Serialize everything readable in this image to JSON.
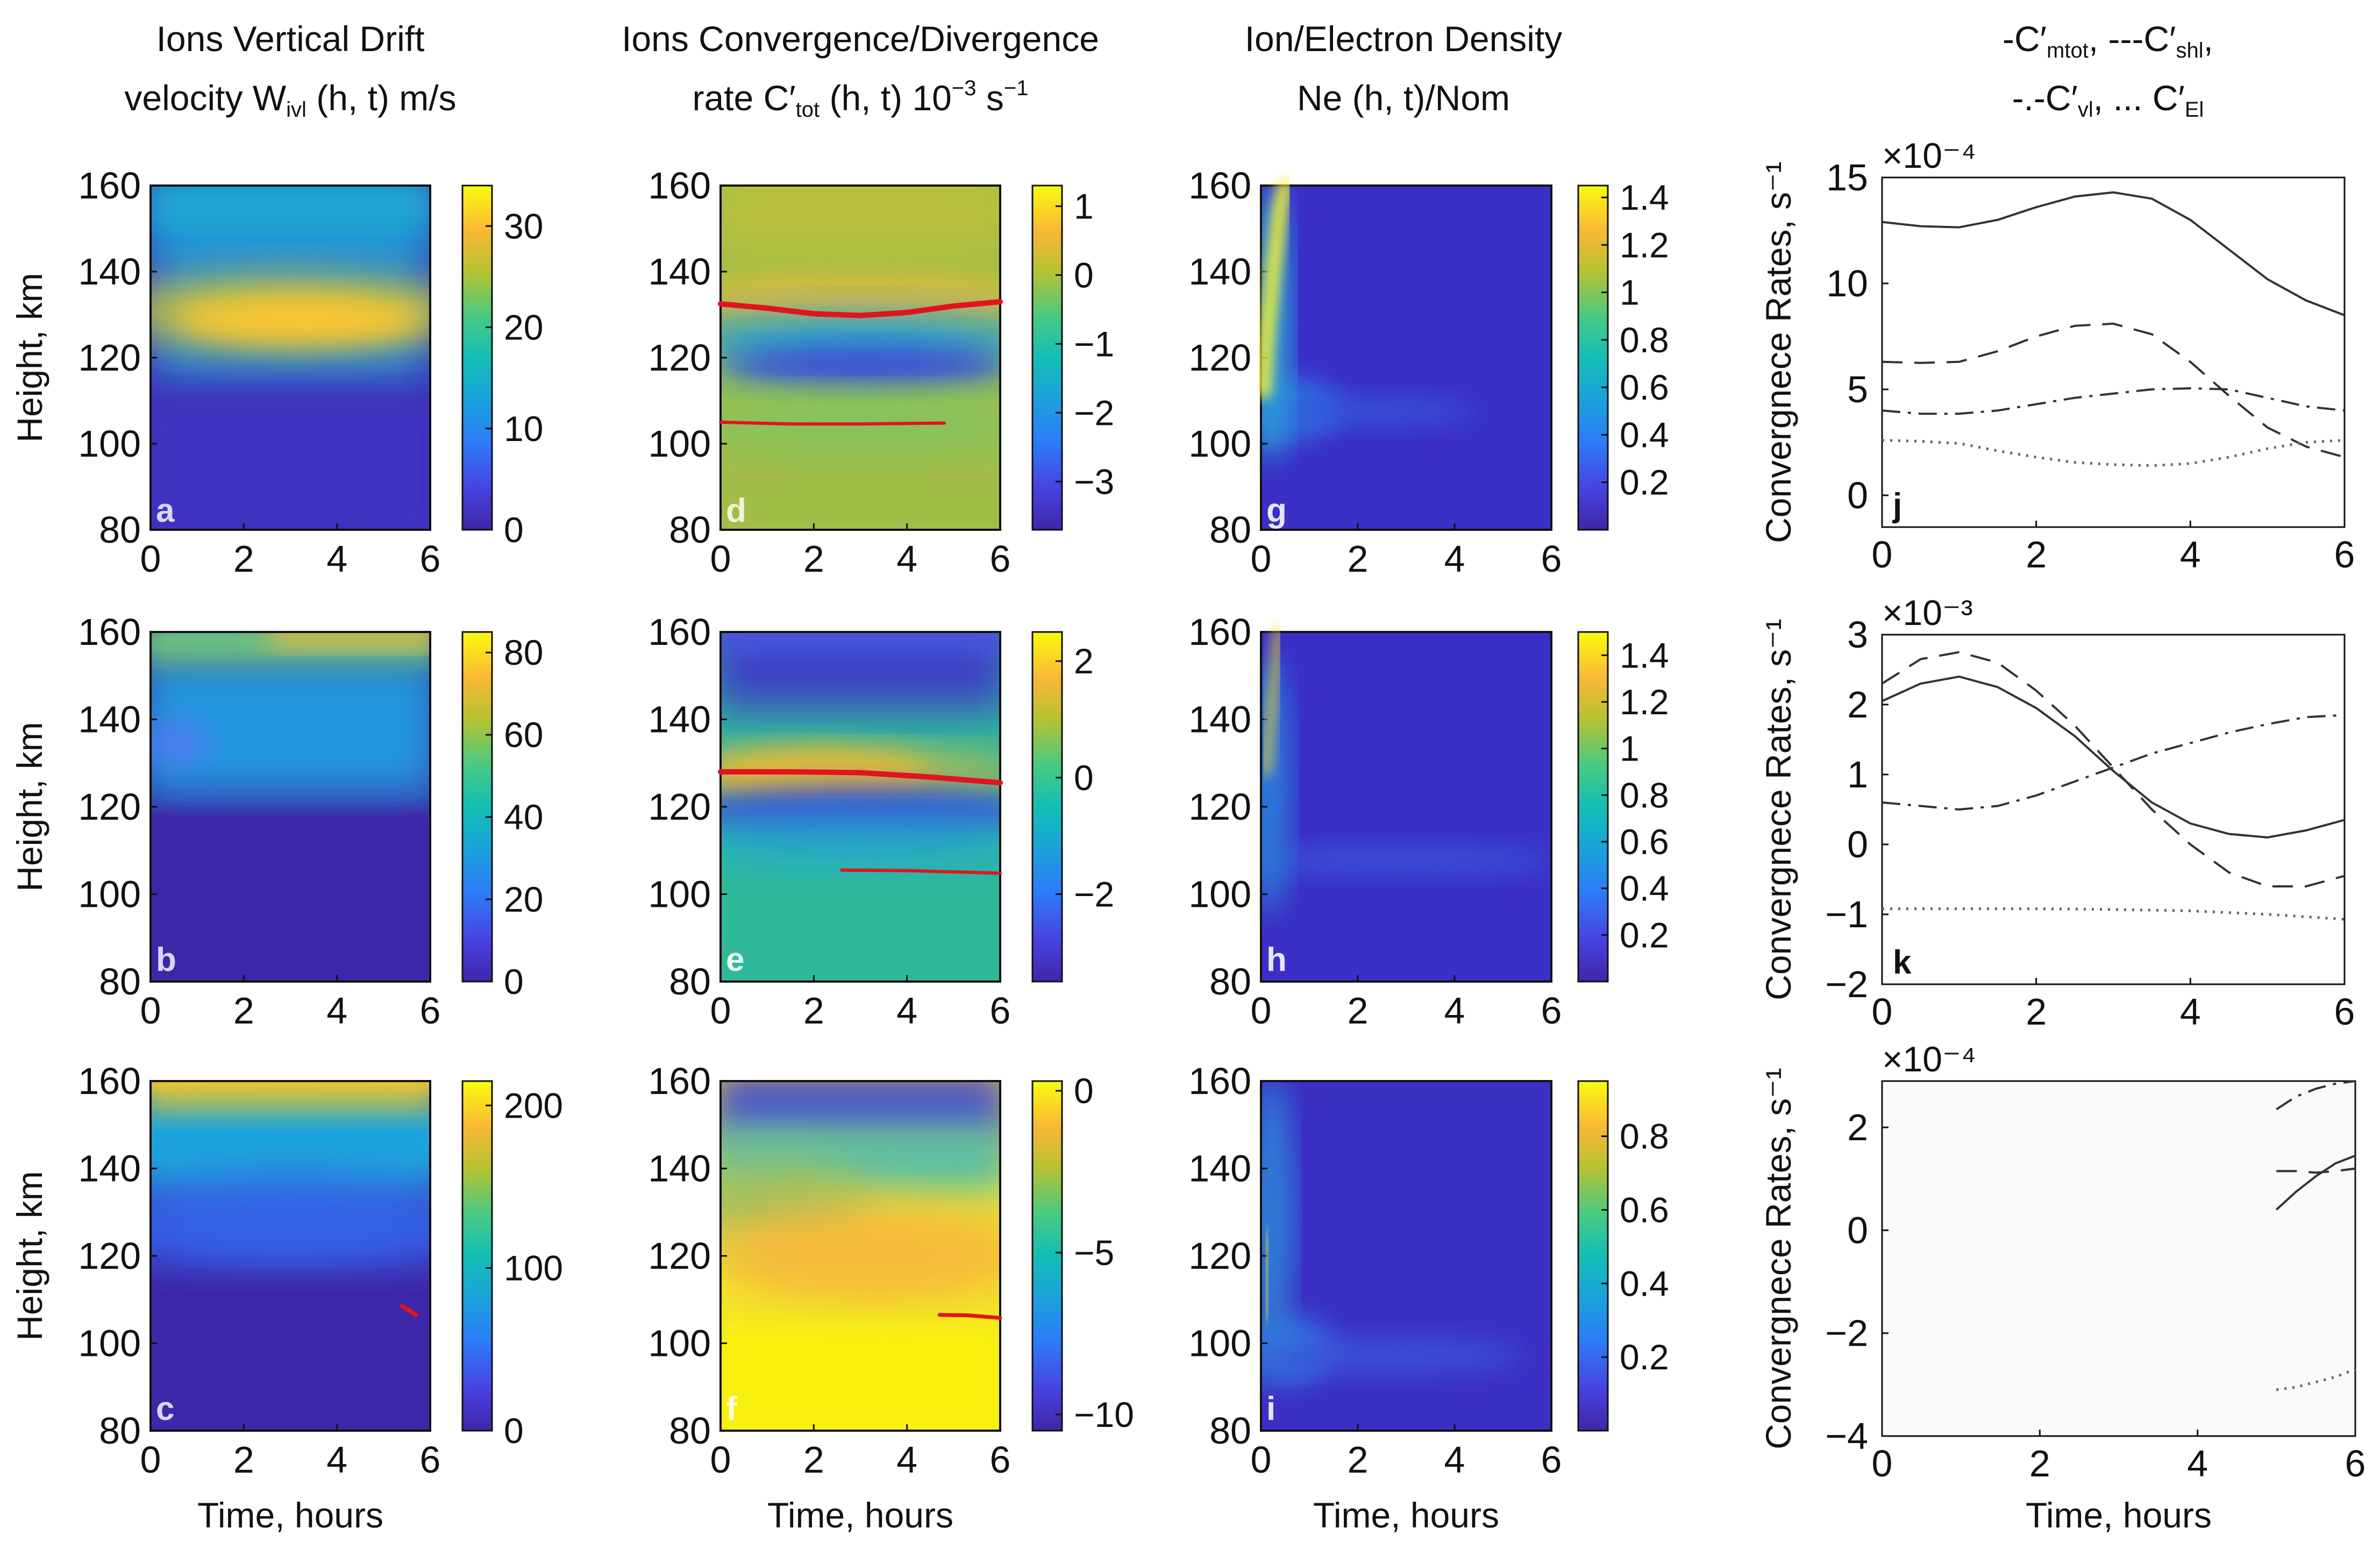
{
  "column_titles": [
    {
      "line1": "Ions Vertical Drift",
      "line2_a": "velocity W",
      "line2_sub": "ivl",
      "line2_b": " (h, t) m/s"
    },
    {
      "line1": "Ions Convergence/Divergence",
      "line2_a": "rate C′",
      "line2_sub": "tot",
      "line2_b": " (h, t) 10",
      "line2_sup": "−3",
      "line2_c": " s",
      "line2_sup2": "−1"
    },
    {
      "line1": "Ion/Electron Density",
      "line2_a": "Ne (h, t)/Nom",
      "line2_sub": "",
      "line2_b": ""
    },
    {
      "line1_a": "-C′",
      "line1_sub1": "mtot",
      "line1_b": ", ---C′",
      "line1_sub2": "shl",
      "line1_c": ",",
      "line2_a": "-.-C′",
      "line2_sub1": "vl",
      "line2_b": ", ... C′",
      "line2_sub2": "El"
    }
  ],
  "colors": {
    "accent_red": "#e0141e",
    "line": "#333333",
    "frame": "#111111"
  },
  "chart_data": [
    {
      "id": "a",
      "type": "heatmap",
      "title": "Ions Vertical Drift velocity W_ivl (h, t) m/s",
      "xlabel": "",
      "ylabel": "Height, km",
      "x_ticks": [
        "0",
        "2",
        "4",
        "6"
      ],
      "y_ticks": [
        "80",
        "100",
        "120",
        "140",
        "160"
      ],
      "xlim": [
        0,
        6
      ],
      "ylim": [
        80,
        160
      ],
      "colorbar_ticks": [
        "0",
        "10",
        "20",
        "30"
      ],
      "colorbar_range": [
        0,
        34
      ]
    },
    {
      "id": "d",
      "type": "heatmap",
      "title": "Ions Convergence/Divergence rate C'_tot (h, t) 10^-3 s^-1",
      "xlabel": "",
      "ylabel": "",
      "x_ticks": [
        "0",
        "2",
        "4",
        "6"
      ],
      "y_ticks": [
        "80",
        "100",
        "120",
        "140",
        "160"
      ],
      "xlim": [
        0,
        6
      ],
      "ylim": [
        80,
        160
      ],
      "colorbar_ticks": [
        "−3",
        "−2",
        "−1",
        "0",
        "1"
      ],
      "colorbar_range": [
        -3.7,
        1.3
      ]
    },
    {
      "id": "g",
      "type": "heatmap",
      "title": "Ion/Electron Density Ne (h, t)/Nom",
      "xlabel": "",
      "ylabel": "",
      "x_ticks": [
        "0",
        "2",
        "4",
        "6"
      ],
      "y_ticks": [
        "80",
        "100",
        "120",
        "140",
        "160"
      ],
      "xlim": [
        0,
        6
      ],
      "ylim": [
        80,
        160
      ],
      "colorbar_ticks": [
        "0.2",
        "0.4",
        "0.6",
        "0.8",
        "1",
        "1.2",
        "1.4"
      ],
      "colorbar_range": [
        0,
        1.45
      ]
    },
    {
      "id": "j",
      "type": "line",
      "title": "",
      "xlabel": "",
      "ylabel": "Convergnece Rates, s⁻¹",
      "scale_label": "×10⁻⁴",
      "x_ticks": [
        "0",
        "2",
        "4",
        "6"
      ],
      "y_ticks": [
        "0",
        "5",
        "10",
        "15"
      ],
      "xlim": [
        0,
        6
      ],
      "ylim": [
        -1.5,
        15
      ],
      "series": [
        {
          "name": "C'_mtot",
          "style": "solid",
          "x": [
            0,
            0.5,
            1,
            1.5,
            2,
            2.5,
            3,
            3.5,
            4,
            4.5,
            5,
            5.5,
            6
          ],
          "y": [
            12.9,
            12.7,
            12.65,
            13.0,
            13.6,
            14.1,
            14.3,
            14.0,
            13.0,
            11.6,
            10.2,
            9.2,
            8.5
          ]
        },
        {
          "name": "C'_shl",
          "style": "dashed",
          "x": [
            0,
            0.5,
            1,
            1.5,
            2,
            2.5,
            3,
            3.5,
            4,
            4.5,
            5,
            5.5,
            6
          ],
          "y": [
            6.3,
            6.25,
            6.3,
            6.8,
            7.5,
            8.0,
            8.1,
            7.6,
            6.3,
            4.7,
            3.2,
            2.3,
            1.8
          ]
        },
        {
          "name": "C'_vl",
          "style": "dashdot",
          "x": [
            0,
            0.5,
            1,
            1.5,
            2,
            2.5,
            3,
            3.5,
            4,
            4.5,
            5,
            5.5,
            6
          ],
          "y": [
            4.0,
            3.85,
            3.85,
            4.0,
            4.3,
            4.6,
            4.8,
            5.0,
            5.05,
            5.0,
            4.6,
            4.2,
            4.0
          ]
        },
        {
          "name": "C'_El",
          "style": "dotted",
          "x": [
            0,
            0.5,
            1,
            1.5,
            2,
            2.5,
            3,
            3.5,
            4,
            4.5,
            5,
            5.5,
            6
          ],
          "y": [
            2.6,
            2.55,
            2.45,
            2.1,
            1.8,
            1.55,
            1.45,
            1.4,
            1.5,
            1.8,
            2.2,
            2.5,
            2.6
          ]
        }
      ]
    },
    {
      "id": "b",
      "type": "heatmap",
      "title": "",
      "xlabel": "",
      "ylabel": "Height, km",
      "x_ticks": [
        "0",
        "2",
        "4",
        "6"
      ],
      "y_ticks": [
        "80",
        "100",
        "120",
        "140",
        "160"
      ],
      "xlim": [
        0,
        6
      ],
      "ylim": [
        80,
        160
      ],
      "colorbar_ticks": [
        "0",
        "20",
        "40",
        "60",
        "80"
      ],
      "colorbar_range": [
        0,
        85
      ]
    },
    {
      "id": "e",
      "type": "heatmap",
      "title": "",
      "xlabel": "",
      "ylabel": "",
      "x_ticks": [
        "0",
        "2",
        "4",
        "6"
      ],
      "y_ticks": [
        "80",
        "100",
        "120",
        "140",
        "160"
      ],
      "xlim": [
        0,
        6
      ],
      "ylim": [
        80,
        160
      ],
      "colorbar_ticks": [
        "−2",
        "0",
        "2"
      ],
      "colorbar_range": [
        -3.5,
        2.5
      ]
    },
    {
      "id": "h",
      "type": "heatmap",
      "title": "",
      "xlabel": "",
      "ylabel": "",
      "x_ticks": [
        "0",
        "2",
        "4",
        "6"
      ],
      "y_ticks": [
        "80",
        "100",
        "120",
        "140",
        "160"
      ],
      "xlim": [
        0,
        6
      ],
      "ylim": [
        80,
        160
      ],
      "colorbar_ticks": [
        "0.2",
        "0.4",
        "0.6",
        "0.8",
        "1",
        "1.2",
        "1.4"
      ],
      "colorbar_range": [
        0,
        1.5
      ]
    },
    {
      "id": "k",
      "type": "line",
      "title": "",
      "xlabel": "",
      "ylabel": "Convergnece Rates, s⁻¹",
      "scale_label": "×10⁻³",
      "x_ticks": [
        "0",
        "2",
        "4",
        "6"
      ],
      "y_ticks": [
        "−2",
        "−1",
        "0",
        "1",
        "2",
        "3"
      ],
      "xlim": [
        0,
        6
      ],
      "ylim": [
        -2,
        3
      ],
      "series": [
        {
          "name": "C'_mtot",
          "style": "solid",
          "x": [
            0,
            0.5,
            1,
            1.5,
            2,
            2.5,
            3,
            3.5,
            4,
            4.5,
            5,
            5.5,
            6
          ],
          "y": [
            2.05,
            2.3,
            2.4,
            2.25,
            1.95,
            1.55,
            1.05,
            0.6,
            0.3,
            0.15,
            0.1,
            0.2,
            0.35
          ]
        },
        {
          "name": "C'_shl",
          "style": "dashed",
          "x": [
            0,
            0.5,
            1,
            1.5,
            2,
            2.5,
            3,
            3.5,
            4,
            4.5,
            5,
            5.5,
            6
          ],
          "y": [
            2.3,
            2.65,
            2.75,
            2.6,
            2.2,
            1.7,
            1.1,
            0.5,
            0.0,
            -0.4,
            -0.6,
            -0.6,
            -0.45
          ]
        },
        {
          "name": "C'_vl",
          "style": "dashdot",
          "x": [
            0,
            0.5,
            1,
            1.5,
            2,
            2.5,
            3,
            3.5,
            4,
            4.5,
            5,
            5.5,
            6
          ],
          "y": [
            0.6,
            0.55,
            0.5,
            0.55,
            0.7,
            0.9,
            1.1,
            1.3,
            1.45,
            1.6,
            1.72,
            1.82,
            1.85
          ]
        },
        {
          "name": "C'_El",
          "style": "dotted",
          "x": [
            0,
            1,
            2,
            3,
            4,
            5,
            6
          ],
          "y": [
            -0.92,
            -0.92,
            -0.92,
            -0.93,
            -0.95,
            -1.0,
            -1.07
          ]
        }
      ]
    },
    {
      "id": "c",
      "type": "heatmap",
      "title": "",
      "xlabel": "Time, hours",
      "ylabel": "Height, km",
      "x_ticks": [
        "0",
        "2",
        "4",
        "6"
      ],
      "y_ticks": [
        "80",
        "100",
        "120",
        "140",
        "160"
      ],
      "xlim": [
        0,
        6
      ],
      "ylim": [
        80,
        160
      ],
      "colorbar_ticks": [
        "0",
        "100",
        "200"
      ],
      "colorbar_range": [
        0,
        215
      ]
    },
    {
      "id": "f",
      "type": "heatmap",
      "title": "",
      "xlabel": "Time, hours",
      "ylabel": "",
      "x_ticks": [
        "0",
        "2",
        "4",
        "6"
      ],
      "y_ticks": [
        "80",
        "100",
        "120",
        "140",
        "160"
      ],
      "xlim": [
        0,
        6
      ],
      "ylim": [
        80,
        160
      ],
      "colorbar_ticks": [
        "−10",
        "−5",
        "0"
      ],
      "colorbar_range": [
        -10.5,
        0.3
      ]
    },
    {
      "id": "i",
      "type": "heatmap",
      "title": "",
      "xlabel": "Time, hours",
      "ylabel": "",
      "x_ticks": [
        "0",
        "2",
        "4",
        "6"
      ],
      "y_ticks": [
        "80",
        "100",
        "120",
        "140",
        "160"
      ],
      "xlim": [
        0,
        6
      ],
      "ylim": [
        80,
        160
      ],
      "colorbar_ticks": [
        "0.2",
        "0.4",
        "0.6",
        "0.8"
      ],
      "colorbar_range": [
        0,
        0.95
      ]
    },
    {
      "id": "l",
      "type": "line",
      "title": "",
      "xlabel": "Time, hours",
      "ylabel": "Convergnece Rates, s⁻¹",
      "scale_label": "×10⁻⁴",
      "x_ticks": [
        "0",
        "2",
        "4",
        "6"
      ],
      "y_ticks": [
        "−4",
        "−2",
        "0",
        "2"
      ],
      "xlim": [
        0,
        6
      ],
      "ylim": [
        -4,
        2.9
      ],
      "series": [
        {
          "name": "C'_mtot",
          "style": "solid",
          "x": [
            5.0,
            5.25,
            5.5,
            5.75,
            6.0
          ],
          "y": [
            0.4,
            0.75,
            1.05,
            1.3,
            1.45
          ]
        },
        {
          "name": "C'_shl",
          "style": "dashed",
          "x": [
            5.0,
            5.25,
            5.5,
            5.75,
            6.0
          ],
          "y": [
            1.15,
            1.15,
            1.12,
            1.15,
            1.2
          ]
        },
        {
          "name": "C'_vl",
          "style": "dashdot",
          "x": [
            5.0,
            5.25,
            5.5,
            5.75,
            6.0
          ],
          "y": [
            2.35,
            2.6,
            2.75,
            2.85,
            2.9
          ]
        },
        {
          "name": "C'_El",
          "style": "dotted",
          "x": [
            5.0,
            5.25,
            5.5,
            5.75,
            6.0
          ],
          "y": [
            -3.1,
            -3.05,
            -2.95,
            -2.85,
            -2.7
          ]
        }
      ]
    }
  ]
}
